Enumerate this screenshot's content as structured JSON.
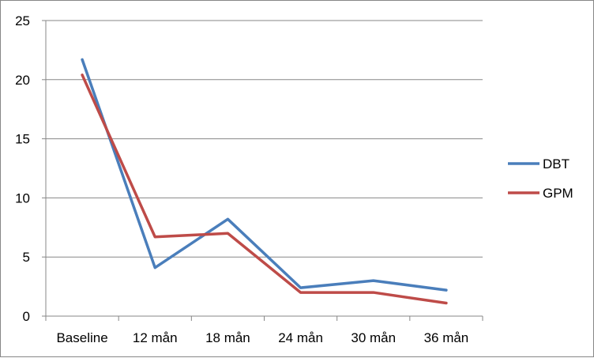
{
  "chart_data": {
    "type": "line",
    "title": "",
    "xlabel": "",
    "ylabel": "",
    "categories": [
      "Baseline",
      "12 mån",
      "18 mån",
      "24 mån",
      "30 mån",
      "36 mån"
    ],
    "ylim": [
      0,
      25
    ],
    "yticks": [
      "0",
      "5",
      "10",
      "15",
      "20",
      "25"
    ],
    "grid": true,
    "legend_position": "right",
    "series": [
      {
        "name": "DBT",
        "color": "#4A7EBB",
        "values": [
          21.7,
          4.1,
          8.2,
          2.4,
          3.0,
          2.2
        ]
      },
      {
        "name": "GPM",
        "color": "#BE4B48",
        "values": [
          20.4,
          6.7,
          7.0,
          2.0,
          2.0,
          1.1
        ]
      }
    ]
  }
}
